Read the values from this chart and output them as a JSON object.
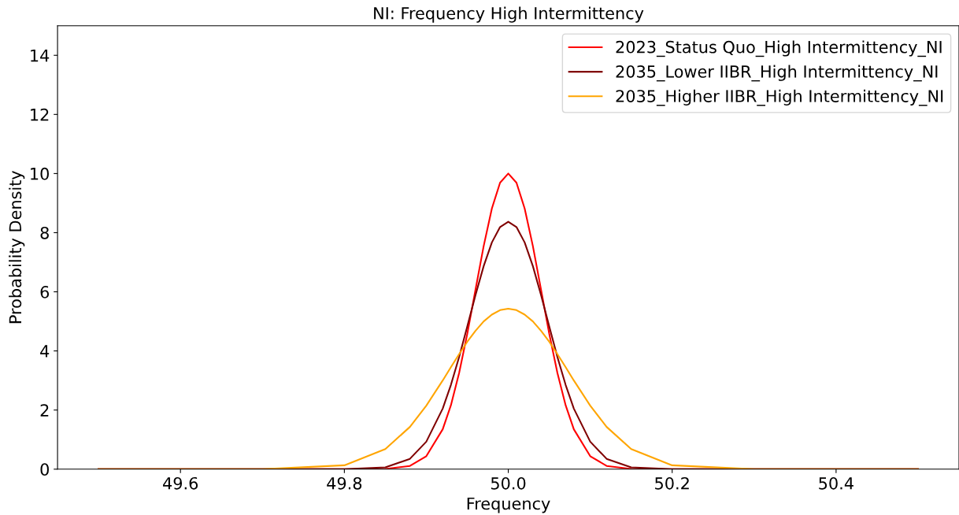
{
  "chart_data": {
    "type": "line",
    "title": "NI: Frequency High Intermittency",
    "xlabel": "Frequency",
    "ylabel": "Probability Density",
    "x": [
      49.5,
      49.7,
      49.8,
      49.85,
      49.88,
      49.9,
      49.92,
      49.93,
      49.94,
      49.95,
      49.96,
      49.97,
      49.98,
      49.99,
      50.0,
      50.01,
      50.02,
      50.03,
      50.04,
      50.05,
      50.06,
      50.07,
      50.08,
      50.1,
      50.12,
      50.15,
      50.2,
      50.3,
      50.5
    ],
    "series": [
      {
        "name": "2023_Status Quo_High Intermittency_NI",
        "color": "#ff0000",
        "values": [
          0,
          0,
          0,
          0.01,
          0.11,
          0.44,
          1.35,
          2.16,
          3.25,
          4.58,
          6.07,
          7.55,
          8.82,
          9.69,
          10.0,
          9.69,
          8.82,
          7.55,
          6.07,
          4.58,
          3.25,
          2.16,
          1.35,
          0.44,
          0.11,
          0.01,
          0,
          0,
          0
        ]
      },
      {
        "name": "2035_Lower IIBR_High Intermittency_NI",
        "color": "#800000",
        "values": [
          0,
          0,
          0,
          0.06,
          0.35,
          0.93,
          2.05,
          2.85,
          3.79,
          4.83,
          5.89,
          6.87,
          7.67,
          8.19,
          8.37,
          8.19,
          7.67,
          6.87,
          5.89,
          4.83,
          3.79,
          2.85,
          2.05,
          0.93,
          0.35,
          0.06,
          0,
          0,
          0
        ]
      },
      {
        "name": "2035_Higher IIBR_High Intermittency_NI",
        "color": "#ffa500",
        "values": [
          0,
          0,
          0.13,
          0.68,
          1.43,
          2.15,
          3.0,
          3.45,
          3.89,
          4.31,
          4.68,
          5.0,
          5.23,
          5.38,
          5.43,
          5.38,
          5.23,
          5.0,
          4.68,
          4.31,
          3.89,
          3.45,
          3.0,
          2.15,
          1.43,
          0.68,
          0.13,
          0,
          0
        ]
      }
    ],
    "xlim": [
      49.45,
      50.55
    ],
    "xticks": [
      49.6,
      49.8,
      {
        "value": 50.0,
        "label": "50.0"
      },
      50.2,
      50.4
    ],
    "ylim": [
      0,
      15
    ],
    "yticks": [
      0,
      2,
      4,
      6,
      8,
      10,
      12,
      14
    ],
    "legend": "top right",
    "grid": false,
    "marker": "none",
    "line_style": "solid"
  }
}
